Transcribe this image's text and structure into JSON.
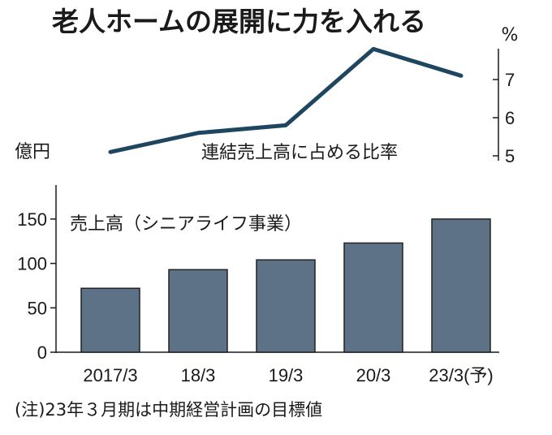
{
  "title": "老人ホームの展開に力を入れる",
  "note": "(注)23年３月期は中期経営計画の目標値",
  "chart_data": [
    {
      "type": "line",
      "series_label": "連結売上高に占める比率",
      "unit": "%",
      "x": [
        "2017/3",
        "18/3",
        "19/3",
        "20/3",
        "23/3(予)"
      ],
      "values": [
        5.1,
        5.6,
        5.8,
        7.8,
        7.1
      ],
      "yticks": [
        5,
        6,
        7
      ],
      "ylim": [
        5,
        8
      ],
      "axis_side": "right",
      "color": "#1f4660"
    },
    {
      "type": "bar",
      "series_label": "売上高（シニアライフ事業）",
      "unit": "億円",
      "categories": [
        "2017/3",
        "18/3",
        "19/3",
        "20/3",
        "23/3(予)"
      ],
      "values": [
        72,
        93,
        104,
        123,
        150
      ],
      "yticks": [
        0,
        50,
        100,
        150
      ],
      "ylim": [
        0,
        185
      ],
      "bar_color": "#5d7287",
      "bar_edge": "#222222"
    }
  ]
}
